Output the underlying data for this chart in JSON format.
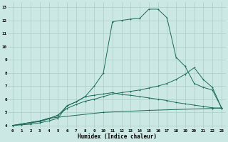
{
  "xlabel": "Humidex (Indice chaleur)",
  "bg_color": "#cce8e4",
  "grid_color": "#aaccc8",
  "line_color": "#1a6b5a",
  "xlim": [
    -0.5,
    23.5
  ],
  "ylim": [
    3.8,
    13.4
  ],
  "xticks": [
    0,
    1,
    2,
    3,
    4,
    5,
    6,
    7,
    8,
    9,
    10,
    11,
    12,
    13,
    14,
    15,
    16,
    17,
    18,
    19,
    20,
    21,
    22,
    23
  ],
  "yticks": [
    4,
    5,
    6,
    7,
    8,
    9,
    10,
    11,
    12,
    13
  ],
  "s1_x": [
    0,
    1,
    2,
    3,
    4,
    5,
    6,
    7,
    8,
    9,
    10,
    11,
    12,
    13,
    14,
    15,
    16,
    17,
    18,
    19,
    20,
    21,
    22,
    23
  ],
  "s1_y": [
    4.0,
    4.05,
    4.1,
    4.2,
    4.35,
    4.55,
    5.5,
    5.8,
    6.2,
    7.0,
    8.0,
    11.9,
    12.0,
    12.1,
    12.15,
    12.85,
    12.85,
    12.2,
    9.2,
    8.5,
    7.2,
    6.9,
    6.7,
    5.35
  ],
  "s2_x": [
    0,
    1,
    2,
    3,
    4,
    5,
    6,
    7,
    8,
    9,
    10,
    11,
    12,
    13,
    14,
    15,
    16,
    17,
    18,
    19,
    20,
    21,
    22,
    23
  ],
  "s2_y": [
    4.0,
    4.1,
    4.2,
    4.3,
    4.5,
    4.8,
    5.3,
    5.6,
    5.85,
    6.0,
    6.2,
    6.4,
    6.5,
    6.6,
    6.7,
    6.85,
    7.0,
    7.2,
    7.5,
    7.9,
    8.4,
    7.5,
    6.9,
    5.35
  ],
  "s3_x": [
    0,
    3,
    4,
    5,
    6,
    7,
    8,
    9,
    10,
    11,
    12,
    13,
    14,
    15,
    16,
    17,
    18,
    19,
    20,
    21,
    22,
    23
  ],
  "s3_y": [
    4.0,
    4.35,
    4.55,
    4.75,
    5.5,
    5.8,
    6.2,
    6.3,
    6.4,
    6.5,
    6.35,
    6.3,
    6.2,
    6.1,
    6.0,
    5.9,
    5.75,
    5.65,
    5.55,
    5.45,
    5.35,
    5.3
  ],
  "s4_x": [
    0,
    3,
    4,
    10,
    15,
    22,
    23
  ],
  "s4_y": [
    4.0,
    4.35,
    4.55,
    5.0,
    5.15,
    5.3,
    5.35
  ]
}
